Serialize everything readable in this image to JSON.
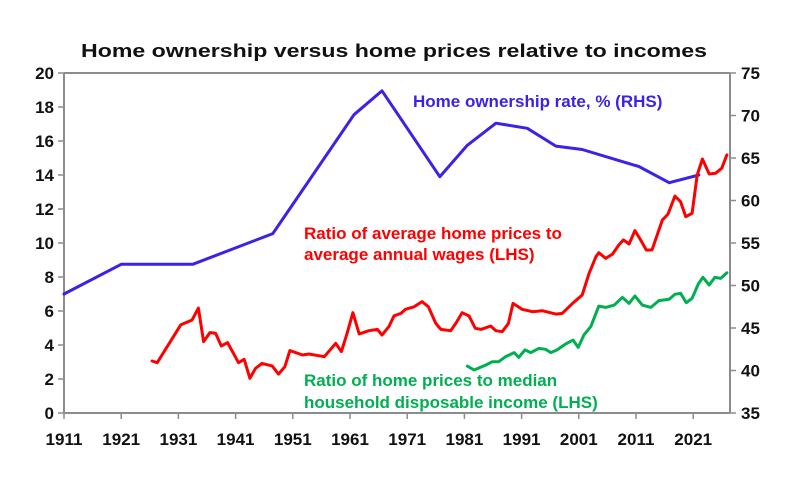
{
  "chart_data": {
    "type": "line",
    "title": "Home ownership versus home prices relative to incomes",
    "x_ticks": [
      "1911",
      "1921",
      "1931",
      "1941",
      "1951",
      "1961",
      "1971",
      "1981",
      "1991",
      "2001",
      "2011",
      "2021"
    ],
    "xlim": [
      1911,
      2027.4
    ],
    "y_left": {
      "lim": [
        0,
        20
      ],
      "ticks": [
        "0",
        "2",
        "4",
        "6",
        "8",
        "10",
        "12",
        "14",
        "16",
        "18",
        "20"
      ]
    },
    "y_right": {
      "lim": [
        35,
        75
      ],
      "ticks": [
        "35",
        "40",
        "45",
        "50",
        "55",
        "60",
        "65",
        "70",
        "75"
      ]
    },
    "grid": false,
    "series": [
      {
        "name": "Home ownership rate, % (RHS)",
        "axis": "right",
        "color": "#3c22e6",
        "points": [
          [
            1911,
            49.0
          ],
          [
            1921,
            52.5
          ],
          [
            1933.5,
            52.5
          ],
          [
            1947.5,
            56.1
          ],
          [
            1961.7,
            70.1
          ],
          [
            1966.6,
            72.9
          ],
          [
            1976.7,
            62.8
          ],
          [
            1981.5,
            66.5
          ],
          [
            1986.5,
            69.1
          ],
          [
            1992,
            68.5
          ],
          [
            1997,
            66.4
          ],
          [
            2001.6,
            66.0
          ],
          [
            2007.5,
            64.8
          ],
          [
            2011.5,
            64.0
          ],
          [
            2016.8,
            62.1
          ],
          [
            2022,
            63.0
          ]
        ]
      },
      {
        "name": "Ratio of average home prices to average annual wages (LHS)",
        "label_lines": [
          "Ratio of average home prices to",
          "average annual wages (LHS)"
        ],
        "axis": "left",
        "color": "#ff0000",
        "points": [
          [
            1926.4,
            3.06
          ],
          [
            1927.3,
            2.96
          ],
          [
            1931.4,
            5.18
          ],
          [
            1933.4,
            5.47
          ],
          [
            1934.5,
            6.17
          ],
          [
            1935.4,
            4.2
          ],
          [
            1936.5,
            4.73
          ],
          [
            1937.5,
            4.69
          ],
          [
            1938.5,
            3.94
          ],
          [
            1939.6,
            4.14
          ],
          [
            1941.5,
            2.96
          ],
          [
            1942.5,
            3.16
          ],
          [
            1943.5,
            2.04
          ],
          [
            1944.5,
            2.63
          ],
          [
            1945.6,
            2.92
          ],
          [
            1947.4,
            2.77
          ],
          [
            1948.5,
            2.29
          ],
          [
            1949.6,
            2.72
          ],
          [
            1950.5,
            3.67
          ],
          [
            1952.7,
            3.41
          ],
          [
            1953.8,
            3.47
          ],
          [
            1956.5,
            3.31
          ],
          [
            1958.5,
            4.1
          ],
          [
            1959.5,
            3.61
          ],
          [
            1960.5,
            4.69
          ],
          [
            1961.5,
            5.9
          ],
          [
            1962.6,
            4.65
          ],
          [
            1964.3,
            4.84
          ],
          [
            1965.8,
            4.92
          ],
          [
            1966.6,
            4.59
          ],
          [
            1967.8,
            5.08
          ],
          [
            1968.7,
            5.71
          ],
          [
            1969.9,
            5.86
          ],
          [
            1970.7,
            6.1
          ],
          [
            1972.2,
            6.25
          ],
          [
            1973.6,
            6.55
          ],
          [
            1974.7,
            6.25
          ],
          [
            1976,
            5.27
          ],
          [
            1976.9,
            4.92
          ],
          [
            1978.6,
            4.84
          ],
          [
            1979.5,
            5.27
          ],
          [
            1980.6,
            5.9
          ],
          [
            1981.8,
            5.71
          ],
          [
            1982.9,
            4.98
          ],
          [
            1983.9,
            4.92
          ],
          [
            1985.6,
            5.12
          ],
          [
            1986.5,
            4.84
          ],
          [
            1987.6,
            4.78
          ],
          [
            1988.7,
            5.27
          ],
          [
            1989.5,
            6.45
          ],
          [
            1991.1,
            6.1
          ],
          [
            1992.9,
            5.96
          ],
          [
            1994.6,
            6.02
          ],
          [
            1997,
            5.82
          ],
          [
            1998.1,
            5.86
          ],
          [
            1999.9,
            6.45
          ],
          [
            2001.6,
            6.94
          ],
          [
            2002.8,
            8.22
          ],
          [
            2004,
            9.2
          ],
          [
            2004.5,
            9.43
          ],
          [
            2005.7,
            9.1
          ],
          [
            2006.9,
            9.35
          ],
          [
            2008,
            9.88
          ],
          [
            2008.8,
            10.18
          ],
          [
            2009.8,
            9.94
          ],
          [
            2010.8,
            10.73
          ],
          [
            2011.8,
            10.18
          ],
          [
            2012.8,
            9.59
          ],
          [
            2013.8,
            9.59
          ],
          [
            2015.6,
            11.35
          ],
          [
            2016.6,
            11.7
          ],
          [
            2017.8,
            12.76
          ],
          [
            2018.8,
            12.43
          ],
          [
            2019.7,
            11.55
          ],
          [
            2020.8,
            11.75
          ],
          [
            2021.7,
            14.0
          ],
          [
            2022.6,
            14.94
          ],
          [
            2023.8,
            14.06
          ],
          [
            2024.9,
            14.1
          ],
          [
            2026,
            14.4
          ],
          [
            2026.9,
            15.18
          ]
        ]
      },
      {
        "name": "Ratio of home prices to median household disposable income (LHS)",
        "label_lines": [
          "Ratio of home prices to median",
          "household disposable income (LHS)"
        ],
        "axis": "left",
        "color": "#00b050",
        "points": [
          [
            1981.5,
            2.76
          ],
          [
            1982.7,
            2.53
          ],
          [
            1984.7,
            2.82
          ],
          [
            1985.9,
            3.02
          ],
          [
            1987,
            3.02
          ],
          [
            1988.2,
            3.31
          ],
          [
            1989.7,
            3.55
          ],
          [
            1990.5,
            3.27
          ],
          [
            1991.6,
            3.71
          ],
          [
            1992.6,
            3.55
          ],
          [
            1994,
            3.8
          ],
          [
            1995.2,
            3.75
          ],
          [
            1996.1,
            3.55
          ],
          [
            1997.2,
            3.71
          ],
          [
            1998.7,
            4.06
          ],
          [
            2000,
            4.29
          ],
          [
            2000.9,
            3.86
          ],
          [
            2001.9,
            4.59
          ],
          [
            2003.1,
            5.08
          ],
          [
            2004.5,
            6.29
          ],
          [
            2005.7,
            6.21
          ],
          [
            2007.2,
            6.35
          ],
          [
            2008.6,
            6.8
          ],
          [
            2009.8,
            6.45
          ],
          [
            2010.8,
            6.88
          ],
          [
            2012.1,
            6.35
          ],
          [
            2013.6,
            6.21
          ],
          [
            2015,
            6.61
          ],
          [
            2016.8,
            6.69
          ],
          [
            2017.8,
            6.98
          ],
          [
            2018.8,
            7.04
          ],
          [
            2019.8,
            6.49
          ],
          [
            2020.8,
            6.75
          ],
          [
            2021.9,
            7.59
          ],
          [
            2022.7,
            7.98
          ],
          [
            2023.8,
            7.53
          ],
          [
            2024.8,
            7.98
          ],
          [
            2025.8,
            7.92
          ],
          [
            2026.9,
            8.25
          ]
        ]
      }
    ]
  }
}
